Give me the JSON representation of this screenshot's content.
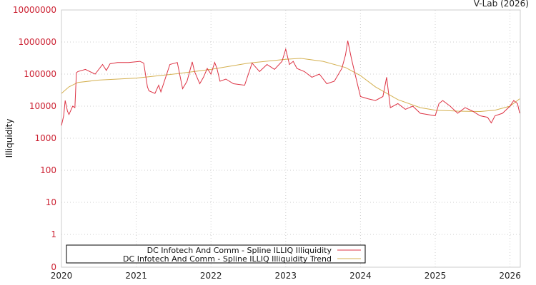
{
  "credit": "V-Lab (2026)",
  "chart_data": {
    "type": "line",
    "title": "",
    "xlabel": "",
    "ylabel": "Illiquidity",
    "yscale": "log",
    "ylim": [
      0,
      10000000
    ],
    "xlim": [
      2020.0,
      2026.13
    ],
    "grid": true,
    "legend_position": "lower-left (inside plot)",
    "y_ticks": [
      "10000000",
      "1000000",
      "100000",
      "10000",
      "1000",
      "100",
      "10",
      "1",
      "0"
    ],
    "x_ticks": [
      "2020",
      "2021",
      "2022",
      "2023",
      "2024",
      "2025",
      "2026"
    ],
    "series": [
      {
        "name": "DC Infotech And Comm - Spline ILLIQ Illiquidity",
        "color": "#dd3344",
        "x": [
          2020.0,
          2020.03,
          2020.05,
          2020.08,
          2020.1,
          2020.15,
          2020.18,
          2020.2,
          2020.22,
          2020.32,
          2020.45,
          2020.55,
          2020.6,
          2020.65,
          2020.75,
          2020.9,
          2021.05,
          2021.1,
          2021.15,
          2021.17,
          2021.25,
          2021.3,
          2021.33,
          2021.45,
          2021.55,
          2021.62,
          2021.68,
          2021.75,
          2021.78,
          2021.85,
          2021.9,
          2021.95,
          2022.0,
          2022.05,
          2022.08,
          2022.12,
          2022.2,
          2022.3,
          2022.45,
          2022.55,
          2022.65,
          2022.75,
          2022.85,
          2022.95,
          2023.0,
          2023.05,
          2023.1,
          2023.15,
          2023.25,
          2023.35,
          2023.45,
          2023.55,
          2023.65,
          2023.75,
          2023.8,
          2023.83,
          2023.88,
          2023.95,
          2024.0,
          2024.1,
          2024.2,
          2024.3,
          2024.35,
          2024.4,
          2024.5,
          2024.6,
          2024.7,
          2024.8,
          2024.9,
          2025.0,
          2025.05,
          2025.1,
          2025.2,
          2025.3,
          2025.4,
          2025.5,
          2025.6,
          2025.7,
          2025.75,
          2025.8,
          2025.9,
          2026.0,
          2026.05,
          2026.1,
          2026.13
        ],
        "values": [
          2500,
          5000,
          15000,
          7000,
          5500,
          10000,
          9000,
          110000,
          120000,
          140000,
          100000,
          200000,
          130000,
          210000,
          230000,
          230000,
          250000,
          220000,
          40000,
          30000,
          25000,
          45000,
          28000,
          200000,
          230000,
          35000,
          60000,
          240000,
          120000,
          50000,
          80000,
          150000,
          100000,
          230000,
          150000,
          60000,
          70000,
          50000,
          45000,
          220000,
          120000,
          200000,
          140000,
          250000,
          600000,
          200000,
          250000,
          150000,
          120000,
          80000,
          100000,
          50000,
          60000,
          150000,
          400000,
          1100000,
          300000,
          60000,
          20000,
          17000,
          15000,
          20000,
          80000,
          9000,
          12000,
          8000,
          10000,
          6000,
          5500,
          5000,
          12000,
          15000,
          10000,
          6000,
          9000,
          7000,
          5000,
          4500,
          3000,
          5000,
          6000,
          10000,
          15000,
          12000,
          6000
        ]
      },
      {
        "name": "DC Infotech And Comm - Spline ILLIQ Illiquidity Trend",
        "color": "#d4b050",
        "x": [
          2020.0,
          2020.1,
          2020.22,
          2020.5,
          2021.0,
          2021.5,
          2022.0,
          2022.5,
          2023.0,
          2023.2,
          2023.5,
          2023.8,
          2024.0,
          2024.2,
          2024.5,
          2024.8,
          2025.0,
          2025.3,
          2025.6,
          2025.8,
          2026.0,
          2026.13
        ],
        "values": [
          25000,
          40000,
          55000,
          65000,
          75000,
          100000,
          140000,
          220000,
          290000,
          310000,
          250000,
          160000,
          90000,
          40000,
          16000,
          9000,
          7500,
          7000,
          6800,
          7500,
          10000,
          17000
        ]
      }
    ]
  }
}
